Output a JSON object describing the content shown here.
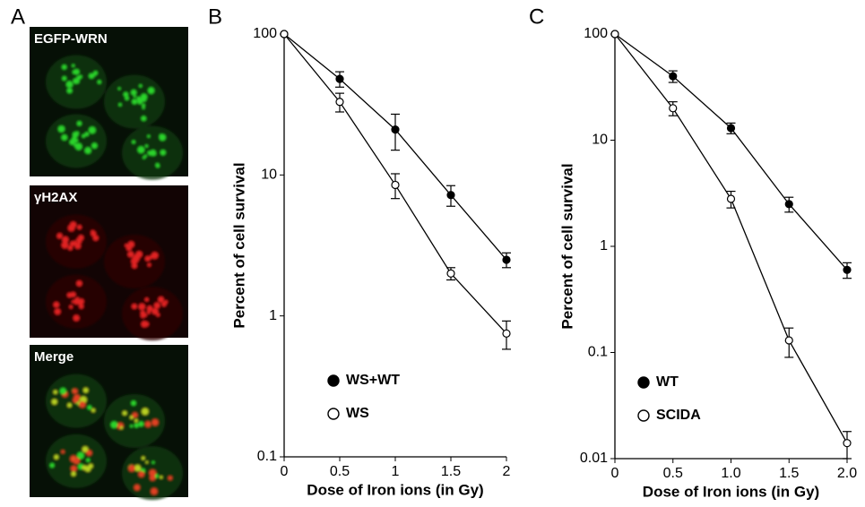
{
  "panels": [
    "A",
    "B",
    "C"
  ],
  "images": [
    {
      "label": "EGFP-WRN"
    },
    {
      "label": "γH2AX"
    },
    {
      "label": "Merge"
    }
  ],
  "chart_data": [
    {
      "type": "line",
      "log_y": true,
      "legend": "lower left",
      "x_label": "Dose of Iron ions (in Gy)",
      "y_label": "Percent of cell survival",
      "x": [
        0,
        0.5,
        1,
        1.5,
        2
      ],
      "xlim": [
        0,
        2
      ],
      "xticks": [
        0,
        0.5,
        1,
        1.5,
        2
      ],
      "ylim": [
        0.1,
        100
      ],
      "yticks": [
        0.1,
        1,
        10,
        100
      ],
      "series": [
        {
          "name": "WS+WT",
          "color": "#000000",
          "marker": "filled",
          "values": [
            100,
            48,
            21,
            7.2,
            2.5
          ],
          "errors": [
            null,
            6,
            6,
            1.2,
            0.3
          ]
        },
        {
          "name": "WS",
          "color": "#000000",
          "marker": "open",
          "values": [
            100,
            33,
            8.5,
            2.0,
            0.75
          ],
          "errors": [
            null,
            5,
            1.7,
            0.2,
            0.17
          ]
        }
      ]
    },
    {
      "type": "line",
      "log_y": true,
      "legend": "lower left",
      "x_label": "Dose of Iron ions (in Gy)",
      "y_label": "Percent of cell survival",
      "x": [
        0,
        0.5,
        1,
        1.5,
        2
      ],
      "xlim": [
        0,
        2
      ],
      "xticks": [
        0,
        0.5,
        {
          "value": 1,
          "label": "1.0"
        },
        1.5,
        {
          "value": 2,
          "label": "2.0"
        }
      ],
      "ylim": [
        0.01,
        100
      ],
      "yticks": [
        0.01,
        0.1,
        1,
        10,
        100
      ],
      "series": [
        {
          "name": "WT",
          "color": "#000000",
          "marker": "filled",
          "values": [
            100,
            40,
            13,
            2.5,
            0.6
          ],
          "errors": [
            null,
            5,
            1.5,
            0.4,
            0.1
          ]
        },
        {
          "name": "SCIDA",
          "color": "#000000",
          "marker": "open",
          "values": [
            100,
            20,
            2.8,
            0.13,
            0.014
          ],
          "errors": [
            null,
            3,
            0.5,
            0.04,
            0.004
          ]
        }
      ]
    }
  ]
}
